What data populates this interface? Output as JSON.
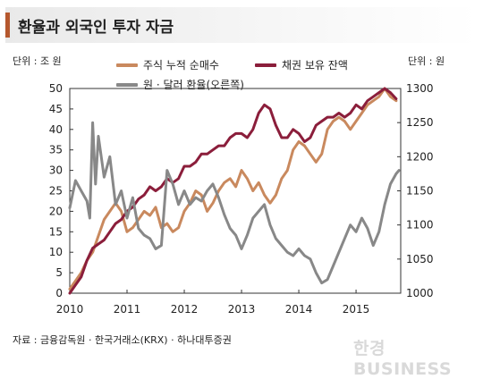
{
  "header": {
    "title": "환율과 외국인 투자 자금"
  },
  "units": {
    "left": "단위 : 조 원",
    "right": "단위 : 원"
  },
  "source": "자료 : 금융감독원 · 한국거래소(KRX) · 하나대투증권",
  "watermark": "한경BUSINESS",
  "chart_data": {
    "type": "line",
    "title": "환율과 외국인 투자 자금",
    "x_ticks": [
      "2010",
      "2011",
      "2012",
      "2013",
      "2014",
      "2015"
    ],
    "xlim": [
      2010.0,
      2015.78
    ],
    "y_left": {
      "label": "단위 : 조 원",
      "lim": [
        0,
        50
      ],
      "ticks": [
        0,
        5,
        10,
        15,
        20,
        25,
        30,
        35,
        40,
        45,
        50
      ]
    },
    "y_right": {
      "label": "단위 : 원",
      "lim": [
        1000,
        1300
      ],
      "ticks": [
        1000,
        1050,
        1100,
        1150,
        1200,
        1250,
        1300
      ]
    },
    "colors": {
      "stock": "#c9895e",
      "bond": "#8b1e3b",
      "fx": "#888888"
    },
    "series": [
      {
        "name": "주식 누적 순매수",
        "axis": "left",
        "points": [
          [
            2010.0,
            1
          ],
          [
            2010.1,
            3
          ],
          [
            2010.2,
            5
          ],
          [
            2010.3,
            8
          ],
          [
            2010.4,
            10
          ],
          [
            2010.5,
            14
          ],
          [
            2010.6,
            18
          ],
          [
            2010.7,
            20
          ],
          [
            2010.8,
            22
          ],
          [
            2010.9,
            20
          ],
          [
            2011.0,
            15
          ],
          [
            2011.1,
            16
          ],
          [
            2011.2,
            18
          ],
          [
            2011.3,
            20
          ],
          [
            2011.4,
            19
          ],
          [
            2011.5,
            21
          ],
          [
            2011.6,
            16
          ],
          [
            2011.7,
            17
          ],
          [
            2011.8,
            15
          ],
          [
            2011.9,
            16
          ],
          [
            2012.0,
            20
          ],
          [
            2012.1,
            22
          ],
          [
            2012.2,
            25
          ],
          [
            2012.3,
            24
          ],
          [
            2012.4,
            20
          ],
          [
            2012.5,
            22
          ],
          [
            2012.6,
            25
          ],
          [
            2012.7,
            27
          ],
          [
            2012.8,
            28
          ],
          [
            2012.9,
            26
          ],
          [
            2013.0,
            30
          ],
          [
            2013.1,
            28
          ],
          [
            2013.2,
            25
          ],
          [
            2013.3,
            27
          ],
          [
            2013.4,
            24
          ],
          [
            2013.5,
            22
          ],
          [
            2013.6,
            24
          ],
          [
            2013.7,
            28
          ],
          [
            2013.8,
            30
          ],
          [
            2013.9,
            35
          ],
          [
            2014.0,
            37
          ],
          [
            2014.1,
            36
          ],
          [
            2014.2,
            34
          ],
          [
            2014.3,
            32
          ],
          [
            2014.4,
            34
          ],
          [
            2014.5,
            40
          ],
          [
            2014.6,
            42
          ],
          [
            2014.7,
            43
          ],
          [
            2014.8,
            42
          ],
          [
            2014.9,
            40
          ],
          [
            2015.0,
            42
          ],
          [
            2015.1,
            44
          ],
          [
            2015.2,
            46
          ],
          [
            2015.3,
            47
          ],
          [
            2015.4,
            48
          ],
          [
            2015.5,
            50
          ],
          [
            2015.6,
            48
          ],
          [
            2015.7,
            47
          ]
        ]
      },
      {
        "name": "채권 보유 잔액",
        "axis": "left",
        "points": [
          [
            2010.0,
            0
          ],
          [
            2010.1,
            2
          ],
          [
            2010.2,
            4
          ],
          [
            2010.3,
            8
          ],
          [
            2010.4,
            11
          ],
          [
            2010.5,
            12
          ],
          [
            2010.6,
            13
          ],
          [
            2010.7,
            15
          ],
          [
            2010.8,
            17
          ],
          [
            2010.9,
            18
          ],
          [
            2011.0,
            20
          ],
          [
            2011.1,
            21
          ],
          [
            2011.2,
            23
          ],
          [
            2011.3,
            24
          ],
          [
            2011.4,
            26
          ],
          [
            2011.5,
            25
          ],
          [
            2011.6,
            26
          ],
          [
            2011.7,
            28
          ],
          [
            2011.8,
            27
          ],
          [
            2011.9,
            28
          ],
          [
            2012.0,
            31
          ],
          [
            2012.1,
            31
          ],
          [
            2012.2,
            32
          ],
          [
            2012.3,
            34
          ],
          [
            2012.4,
            34
          ],
          [
            2012.5,
            35
          ],
          [
            2012.6,
            36
          ],
          [
            2012.7,
            36
          ],
          [
            2012.8,
            38
          ],
          [
            2012.9,
            39
          ],
          [
            2013.0,
            39
          ],
          [
            2013.1,
            38
          ],
          [
            2013.2,
            40
          ],
          [
            2013.3,
            44
          ],
          [
            2013.4,
            46
          ],
          [
            2013.5,
            45
          ],
          [
            2013.6,
            41
          ],
          [
            2013.7,
            38
          ],
          [
            2013.8,
            38
          ],
          [
            2013.9,
            40
          ],
          [
            2014.0,
            39
          ],
          [
            2014.1,
            37
          ],
          [
            2014.2,
            38
          ],
          [
            2014.3,
            41
          ],
          [
            2014.4,
            42
          ],
          [
            2014.5,
            43
          ],
          [
            2014.6,
            43
          ],
          [
            2014.7,
            44
          ],
          [
            2014.8,
            43
          ],
          [
            2014.9,
            44
          ],
          [
            2015.0,
            46
          ],
          [
            2015.1,
            45
          ],
          [
            2015.2,
            47
          ],
          [
            2015.3,
            48
          ],
          [
            2015.4,
            49
          ],
          [
            2015.5,
            50
          ],
          [
            2015.6,
            49
          ],
          [
            2015.7,
            47.5
          ]
        ]
      },
      {
        "name": "원 · 달러 환율(오른쪽)",
        "axis": "right",
        "points": [
          [
            2010.0,
            1125
          ],
          [
            2010.1,
            1165
          ],
          [
            2010.2,
            1150
          ],
          [
            2010.3,
            1135
          ],
          [
            2010.35,
            1110
          ],
          [
            2010.4,
            1250
          ],
          [
            2010.45,
            1160
          ],
          [
            2010.5,
            1230
          ],
          [
            2010.6,
            1170
          ],
          [
            2010.7,
            1200
          ],
          [
            2010.8,
            1130
          ],
          [
            2010.9,
            1150
          ],
          [
            2011.0,
            1110
          ],
          [
            2011.1,
            1140
          ],
          [
            2011.2,
            1095
          ],
          [
            2011.3,
            1085
          ],
          [
            2011.4,
            1080
          ],
          [
            2011.5,
            1065
          ],
          [
            2011.6,
            1070
          ],
          [
            2011.7,
            1180
          ],
          [
            2011.8,
            1160
          ],
          [
            2011.9,
            1130
          ],
          [
            2012.0,
            1150
          ],
          [
            2012.1,
            1130
          ],
          [
            2012.2,
            1140
          ],
          [
            2012.3,
            1135
          ],
          [
            2012.4,
            1150
          ],
          [
            2012.5,
            1160
          ],
          [
            2012.6,
            1140
          ],
          [
            2012.7,
            1115
          ],
          [
            2012.8,
            1095
          ],
          [
            2012.9,
            1085
          ],
          [
            2013.0,
            1065
          ],
          [
            2013.1,
            1085
          ],
          [
            2013.2,
            1110
          ],
          [
            2013.3,
            1120
          ],
          [
            2013.4,
            1130
          ],
          [
            2013.5,
            1100
          ],
          [
            2013.6,
            1080
          ],
          [
            2013.7,
            1070
          ],
          [
            2013.8,
            1060
          ],
          [
            2013.9,
            1055
          ],
          [
            2014.0,
            1065
          ],
          [
            2014.1,
            1055
          ],
          [
            2014.2,
            1050
          ],
          [
            2014.3,
            1030
          ],
          [
            2014.4,
            1015
          ],
          [
            2014.5,
            1020
          ],
          [
            2014.6,
            1040
          ],
          [
            2014.7,
            1060
          ],
          [
            2014.8,
            1080
          ],
          [
            2014.9,
            1100
          ],
          [
            2015.0,
            1090
          ],
          [
            2015.1,
            1110
          ],
          [
            2015.2,
            1095
          ],
          [
            2015.3,
            1070
          ],
          [
            2015.4,
            1090
          ],
          [
            2015.5,
            1130
          ],
          [
            2015.6,
            1160
          ],
          [
            2015.7,
            1175
          ],
          [
            2015.75,
            1180
          ]
        ]
      }
    ]
  }
}
